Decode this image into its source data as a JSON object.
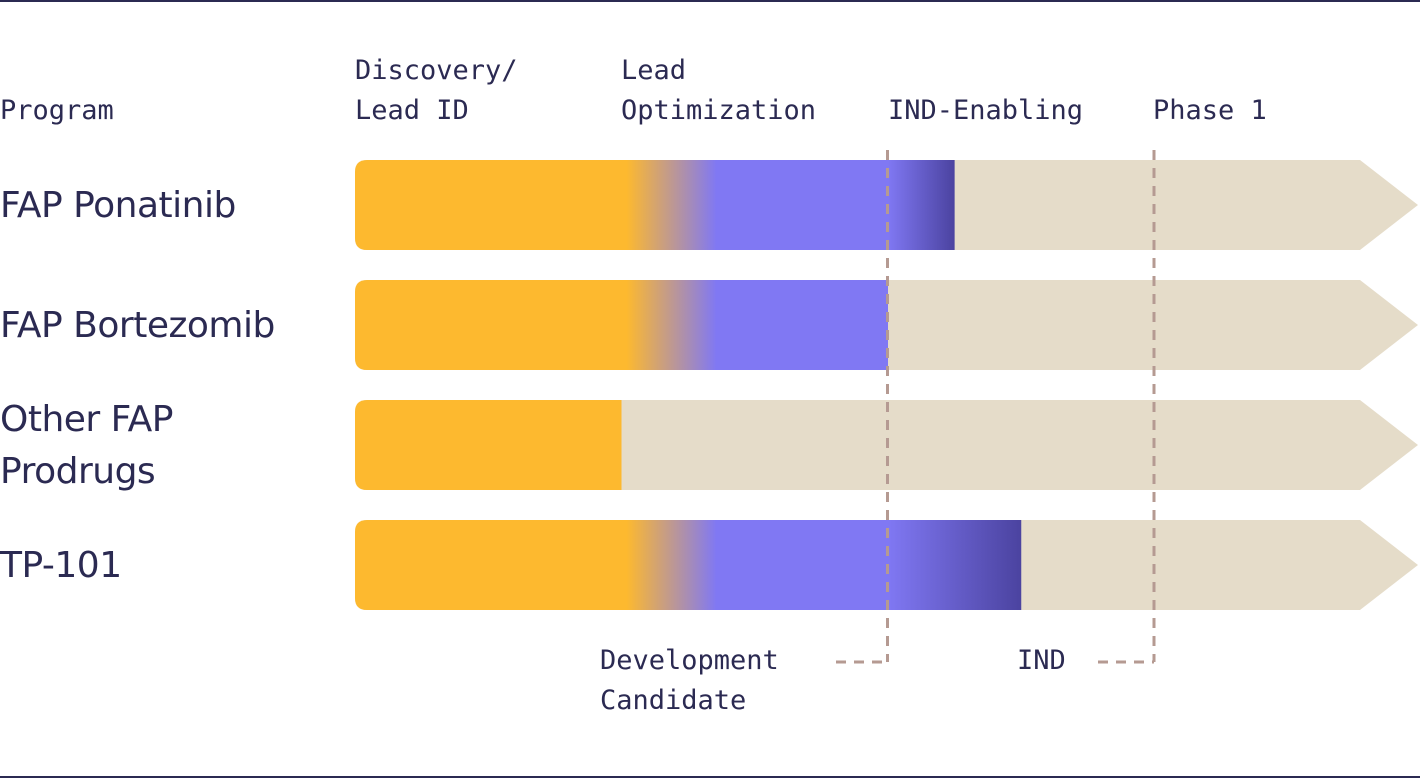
{
  "headers": {
    "program": "Program",
    "stages": [
      "Discovery/\nLead ID",
      "Lead\nOptimization",
      "IND-Enabling",
      "Phase 1"
    ]
  },
  "programs": [
    {
      "name": "FAP Ponatinib",
      "progress_stages": 2.25
    },
    {
      "name": "FAP Bortezomib",
      "progress_stages": 2.0
    },
    {
      "name": "Other FAP\nProdrugs",
      "progress_stages": 1.0
    },
    {
      "name": "TP-101",
      "progress_stages": 2.5
    }
  ],
  "milestones": [
    {
      "label": "Development\nCandidate",
      "at_stage_boundary": 2
    },
    {
      "label": "IND",
      "at_stage_boundary": 3
    }
  ],
  "colors": {
    "discovery": "#fdb92f",
    "lead_optimization": "#8078f3",
    "ind_enabling_dark": "#4b43a0",
    "track": "#e5dcc9",
    "milestone_line": "#b59a92",
    "text": "#2b2a52"
  }
}
